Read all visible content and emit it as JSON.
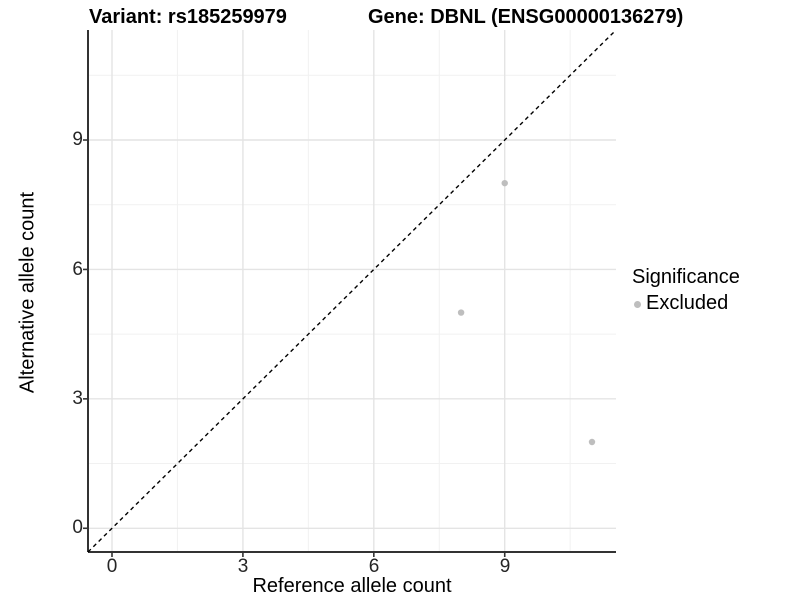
{
  "titles": {
    "variant": "Variant: rs185259979",
    "gene": "Gene: DBNL (ENSG00000136279)"
  },
  "legend": {
    "title": "Significance",
    "items": [
      {
        "label": "Excluded",
        "color": "#bebebe"
      }
    ]
  },
  "chart_data": {
    "type": "scatter",
    "title": "Variant: rs185259979  Gene: DBNL (ENSG00000136279)",
    "xlabel": "Reference allele count",
    "ylabel": "Alternative allele count",
    "xlim": [
      -0.55,
      11.55
    ],
    "ylim": [
      -0.55,
      11.55
    ],
    "x_ticks": [
      0,
      3,
      6,
      9
    ],
    "y_ticks": [
      0,
      3,
      6,
      9
    ],
    "grid": {
      "major": [
        0,
        3,
        6,
        9
      ],
      "minor": [
        1.5,
        4.5,
        7.5,
        10.5
      ],
      "major_color": "#e4e4e4",
      "minor_color": "#f1f1f1"
    },
    "series": [
      {
        "name": "Excluded",
        "color": "#bebebe",
        "points": [
          [
            9,
            8
          ],
          [
            8,
            5
          ],
          [
            11,
            2
          ]
        ]
      }
    ],
    "reference_line": {
      "equation": "y=x",
      "style": "dashed",
      "color": "#000000"
    },
    "axis_line_color": "#333333",
    "legend_position": "right"
  }
}
